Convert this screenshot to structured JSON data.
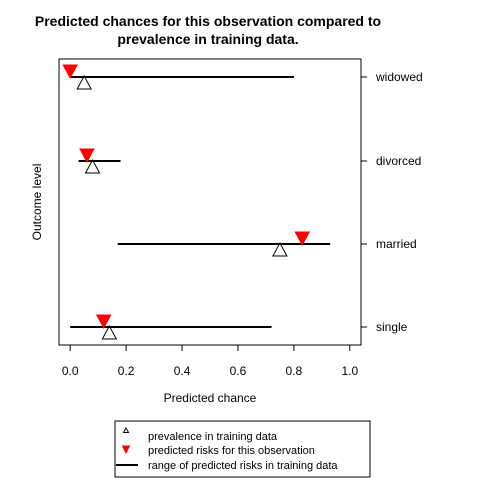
{
  "chart_data": {
    "type": "scatter",
    "title": [
      "Predicted chances for this observation compared to",
      "prevalence in training data."
    ],
    "xlabel": "Predicted chance",
    "ylabel": "Outcome level",
    "xlim": [
      -0.04,
      1.04
    ],
    "x_ticks": [
      "0.0",
      "0.2",
      "0.4",
      "0.6",
      "0.8",
      "1.0"
    ],
    "categories": [
      "single",
      "married",
      "divorced",
      "widowed"
    ],
    "series": [
      {
        "name": "prevalence in training data",
        "marker": "open-triangle-up",
        "values": [
          0.14,
          0.75,
          0.08,
          0.05
        ]
      },
      {
        "name": "predicted risks for this observation",
        "marker": "filled-triangle-down",
        "color": "#ff0000",
        "values": [
          0.12,
          0.83,
          0.06,
          0.0
        ]
      },
      {
        "name": "range of predicted risks in training data",
        "marker": "line",
        "ranges": [
          [
            0.0,
            0.72
          ],
          [
            0.17,
            0.93
          ],
          [
            0.03,
            0.18
          ],
          [
            0.0,
            0.8
          ]
        ]
      }
    ],
    "grid": false,
    "legend": "bottom"
  }
}
